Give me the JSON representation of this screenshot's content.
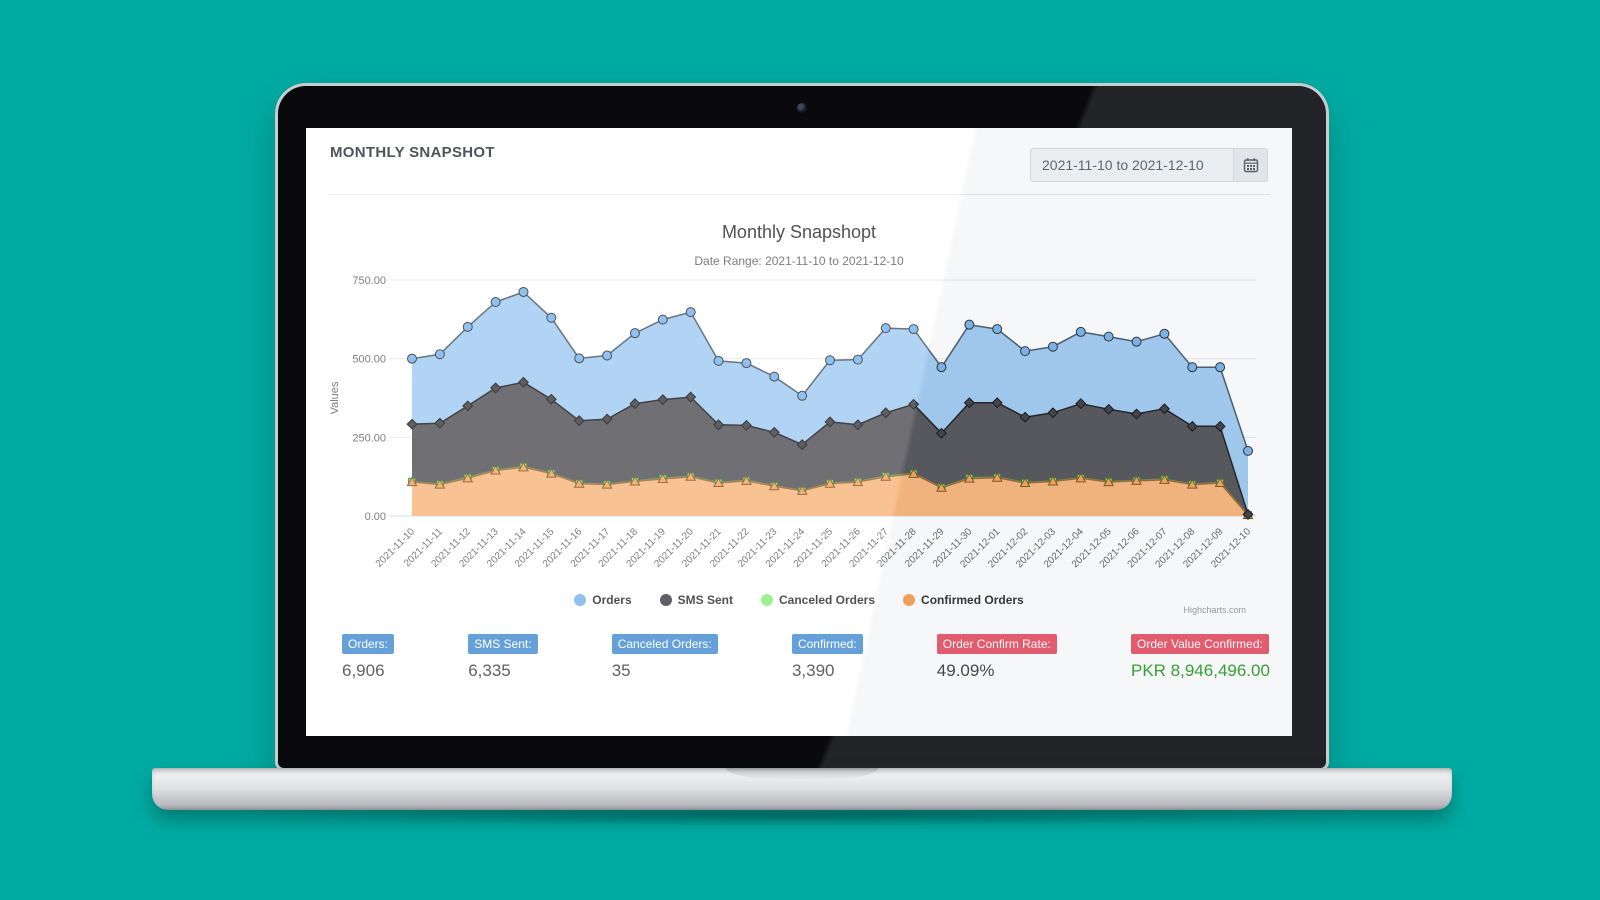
{
  "app": {
    "header_title": "MONTHLY SNAPSHOT",
    "date_picker": {
      "value": "2021-11-10 to 2021-12-10"
    }
  },
  "chart_data": {
    "type": "area",
    "stacked": true,
    "title": "Monthly Snapshopt",
    "subtitle": "Date Range: 2021-11-10 to 2021-12-10",
    "xlabel": "",
    "ylabel": "Values",
    "ylim": [
      0,
      750
    ],
    "grid": true,
    "legend_position": "bottom",
    "credit": "Highcharts.com",
    "yticks": [
      {
        "value": 750,
        "label": "750.00"
      },
      {
        "value": 500,
        "label": "500.00"
      },
      {
        "value": 250,
        "label": "250.00"
      },
      {
        "value": 0,
        "label": "0.00"
      }
    ],
    "categories": [
      "2021-11-10",
      "2021-11-11",
      "2021-11-12",
      "2021-11-13",
      "2021-11-14",
      "2021-11-15",
      "2021-11-16",
      "2021-11-17",
      "2021-11-18",
      "2021-11-19",
      "2021-11-20",
      "2021-11-21",
      "2021-11-22",
      "2021-11-23",
      "2021-11-24",
      "2021-11-25",
      "2021-11-26",
      "2021-11-27",
      "2021-11-28",
      "2021-11-29",
      "2021-11-30",
      "2021-12-01",
      "2021-12-02",
      "2021-12-03",
      "2021-12-04",
      "2021-12-05",
      "2021-12-06",
      "2021-12-07",
      "2021-12-08",
      "2021-12-09",
      "2021-12-10"
    ],
    "series": [
      {
        "name": "Orders",
        "color": "#7cb5ec",
        "fill": "#a3ccf2",
        "line_color": "#4d5d6d",
        "marker": "circle",
        "values": [
          208,
          219,
          251,
          273,
          287,
          259,
          198,
          202,
          224,
          254,
          270,
          203,
          198,
          177,
          155,
          196,
          207,
          269,
          239,
          210,
          248,
          234,
          210,
          210,
          228,
          231,
          230,
          238,
          188,
          188,
          202
        ]
      },
      {
        "name": "SMS Sent",
        "color": "#434348",
        "fill": "#57575c",
        "line_color": "#222226",
        "marker": "diamond",
        "values": [
          183,
          194,
          228,
          261,
          268,
          235,
          199,
          207,
          246,
          250,
          252,
          184,
          175,
          170,
          147,
          195,
          181,
          201,
          220,
          172,
          239,
          237,
          208,
          217,
          236,
          230,
          211,
          224,
          184,
          179,
          2
        ]
      },
      {
        "name": "Canceled Orders",
        "color": "#90ed7d",
        "fill": "#90ed7d",
        "line_color": "#63b554",
        "marker": "square",
        "values": [
          1,
          1,
          2,
          1,
          2,
          1,
          1,
          1,
          1,
          2,
          1,
          1,
          1,
          1,
          0,
          1,
          1,
          2,
          1,
          1,
          2,
          1,
          1,
          1,
          1,
          1,
          1,
          2,
          1,
          1,
          0
        ]
      },
      {
        "name": "Confirmed Orders",
        "color": "#f7a35c",
        "fill": "#f8b77f",
        "line_color": "#9b6a34",
        "marker": "triangle",
        "values": [
          108,
          100,
          120,
          145,
          155,
          135,
          103,
          100,
          110,
          118,
          125,
          105,
          112,
          95,
          80,
          103,
          108,
          125,
          134,
          90,
          119,
          122,
          105,
          110,
          120,
          108,
          112,
          115,
          100,
          105,
          3
        ]
      }
    ]
  },
  "stats": [
    {
      "label": "Orders:",
      "value": "6,906",
      "badge_color": "#4a90d2",
      "value_color": "#454545"
    },
    {
      "label": "SMS Sent:",
      "value": "6,335",
      "badge_color": "#4a90d2",
      "value_color": "#454545"
    },
    {
      "label": "Canceled Orders:",
      "value": "35",
      "badge_color": "#4a90d2",
      "value_color": "#454545"
    },
    {
      "label": "Confirmed:",
      "value": "3,390",
      "badge_color": "#4a90d2",
      "value_color": "#454545"
    },
    {
      "label": "Order Confirm Rate:",
      "value": "49.09%",
      "badge_color": "#e85c6e",
      "value_color": "#454545"
    },
    {
      "label": "Order Value Confirmed:",
      "value": "PKR 8,946,496.00",
      "badge_color": "#e85c6e",
      "value_color": "#35a135"
    }
  ]
}
